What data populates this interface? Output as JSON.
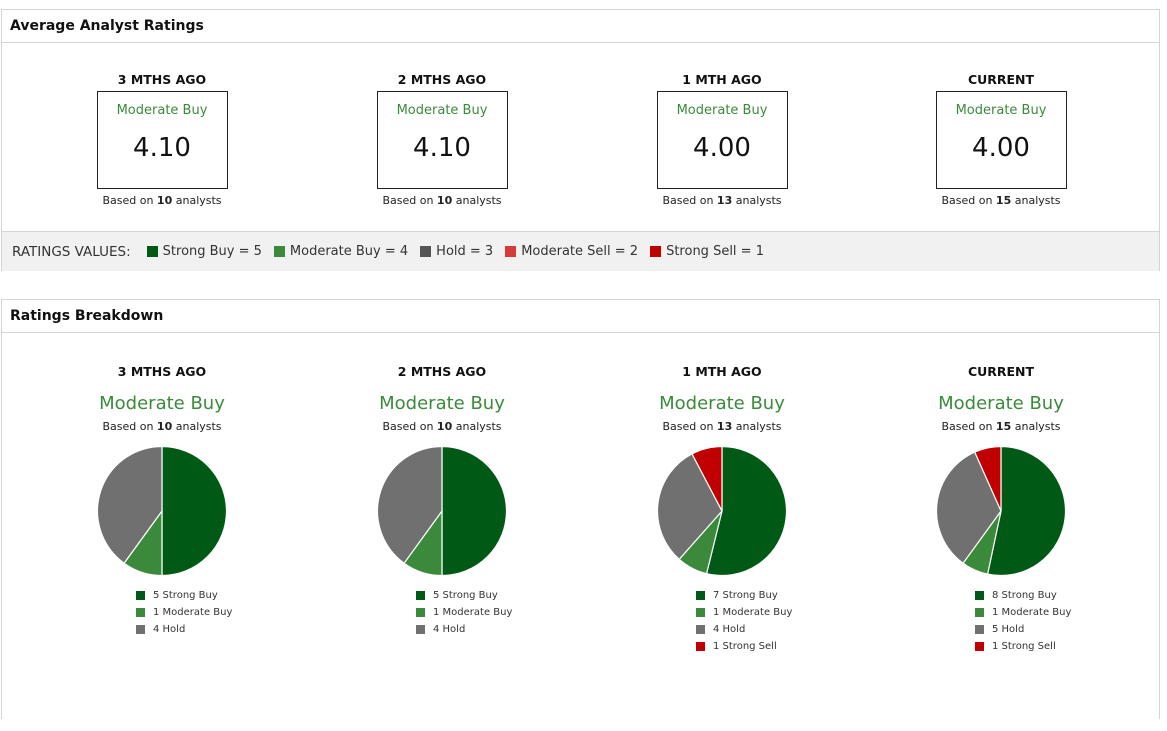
{
  "avg_panel": {
    "title": "Average Analyst Ratings",
    "columns": [
      {
        "period": "3 MTHS AGO",
        "rating": "Moderate Buy",
        "score": "4.10",
        "based_prefix": "Based on",
        "count": "10",
        "based_suffix": "analysts"
      },
      {
        "period": "2 MTHS AGO",
        "rating": "Moderate Buy",
        "score": "4.10",
        "based_prefix": "Based on",
        "count": "10",
        "based_suffix": "analysts"
      },
      {
        "period": "1 MTH AGO",
        "rating": "Moderate Buy",
        "score": "4.00",
        "based_prefix": "Based on",
        "count": "13",
        "based_suffix": "analysts"
      },
      {
        "period": "CURRENT",
        "rating": "Moderate Buy",
        "score": "4.00",
        "based_prefix": "Based on",
        "count": "15",
        "based_suffix": "analysts"
      }
    ],
    "legend": {
      "title": "RATINGS VALUES:",
      "items": [
        {
          "label": "Strong Buy = 5",
          "color": "#005a16"
        },
        {
          "label": "Moderate Buy = 4",
          "color": "#3b8a3b"
        },
        {
          "label": "Hold = 3",
          "color": "#555555"
        },
        {
          "label": "Moderate Sell = 2",
          "color": "#d63b3b"
        },
        {
          "label": "Strong Sell = 1",
          "color": "#c00000"
        }
      ]
    }
  },
  "breakdown_panel": {
    "title": "Ratings Breakdown",
    "colors": {
      "Strong Buy": "#005a16",
      "Moderate Buy": "#3b8a3b",
      "Hold": "#707070",
      "Strong Sell": "#c00000"
    },
    "columns": [
      {
        "period": "3 MTHS AGO",
        "rating": "Moderate Buy",
        "based_prefix": "Based on",
        "count": "10",
        "based_suffix": "analysts",
        "legend": [
          "5 Strong Buy",
          "1 Moderate Buy",
          "4 Hold"
        ]
      },
      {
        "period": "2 MTHS AGO",
        "rating": "Moderate Buy",
        "based_prefix": "Based on",
        "count": "10",
        "based_suffix": "analysts",
        "legend": [
          "5 Strong Buy",
          "1 Moderate Buy",
          "4 Hold"
        ]
      },
      {
        "period": "1 MTH AGO",
        "rating": "Moderate Buy",
        "based_prefix": "Based on",
        "count": "13",
        "based_suffix": "analysts",
        "legend": [
          "7 Strong Buy",
          "1 Moderate Buy",
          "4 Hold",
          "1 Strong Sell"
        ]
      },
      {
        "period": "CURRENT",
        "rating": "Moderate Buy",
        "based_prefix": "Based on",
        "count": "15",
        "based_suffix": "analysts",
        "legend": [
          "8 Strong Buy",
          "1 Moderate Buy",
          "5 Hold",
          "1 Strong Sell"
        ]
      }
    ]
  },
  "chart_data": [
    {
      "type": "pie",
      "title": "3 MTHS AGO",
      "series": [
        {
          "name": "Strong Buy",
          "value": 5
        },
        {
          "name": "Moderate Buy",
          "value": 1
        },
        {
          "name": "Hold",
          "value": 4
        }
      ]
    },
    {
      "type": "pie",
      "title": "2 MTHS AGO",
      "series": [
        {
          "name": "Strong Buy",
          "value": 5
        },
        {
          "name": "Moderate Buy",
          "value": 1
        },
        {
          "name": "Hold",
          "value": 4
        }
      ]
    },
    {
      "type": "pie",
      "title": "1 MTH AGO",
      "series": [
        {
          "name": "Strong Buy",
          "value": 7
        },
        {
          "name": "Moderate Buy",
          "value": 1
        },
        {
          "name": "Hold",
          "value": 4
        },
        {
          "name": "Strong Sell",
          "value": 1
        }
      ]
    },
    {
      "type": "pie",
      "title": "CURRENT",
      "series": [
        {
          "name": "Strong Buy",
          "value": 8
        },
        {
          "name": "Moderate Buy",
          "value": 1
        },
        {
          "name": "Hold",
          "value": 5
        },
        {
          "name": "Strong Sell",
          "value": 1
        }
      ]
    }
  ]
}
